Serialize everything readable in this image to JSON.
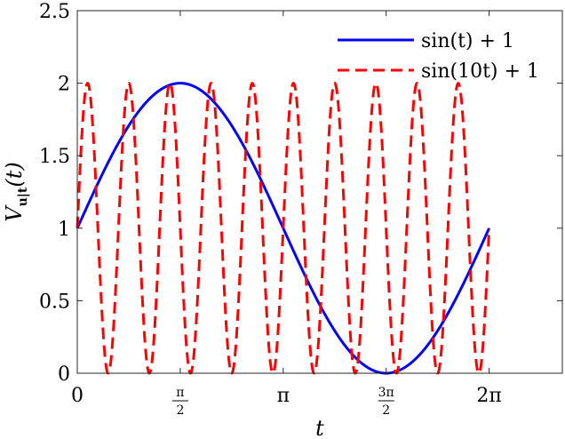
{
  "chart_data": {
    "type": "line",
    "title": "",
    "xlabel": "t",
    "ylabel": "V_{u|t}(t)",
    "xlim": [
      0,
      7.4
    ],
    "ylim": [
      0,
      2.5
    ],
    "x_ticks": [
      {
        "value": 0,
        "label": "0"
      },
      {
        "value": 1.5708,
        "label": "π/2",
        "num": "π",
        "den": "2"
      },
      {
        "value": 3.1416,
        "label": "π"
      },
      {
        "value": 4.7124,
        "label": "3π/2",
        "num": "3π",
        "den": "2"
      },
      {
        "value": 6.2832,
        "label": "2π"
      }
    ],
    "y_ticks": [
      "0",
      "0.5",
      "1",
      "1.5",
      "2",
      "2.5"
    ],
    "y_tick_values": [
      0,
      0.5,
      1,
      1.5,
      2,
      2.5
    ],
    "grid": false,
    "legend_position": "top-right",
    "series": [
      {
        "name": "sin(t) + 1",
        "color": "#0000ff",
        "style": "solid",
        "x_range": [
          0,
          6.2832
        ],
        "function": "sin(t) + 1"
      },
      {
        "name": "sin(10t) + 1",
        "color": "#ff0000",
        "style": "dashed",
        "x_range": [
          0,
          6.2832
        ],
        "function": "sin(10t) + 1"
      }
    ]
  },
  "axes": {
    "xlabel": "t",
    "ylabel_main": "V",
    "ylabel_sub": "u|t",
    "ylabel_arg": "(t)"
  },
  "legend": {
    "items": [
      {
        "label": "sin(t) + 1",
        "color": "#0000ff",
        "style": "solid"
      },
      {
        "label": "sin(10t) + 1",
        "color": "#ff0000",
        "style": "dashed"
      }
    ]
  }
}
